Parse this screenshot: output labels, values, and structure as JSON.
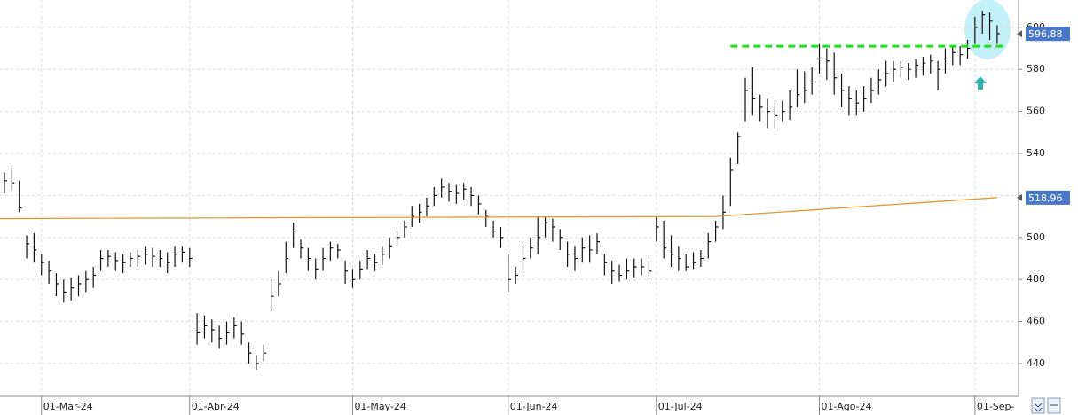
{
  "chart_data": {
    "type": "ohlc",
    "categories": [
      null,
      null,
      null,
      null,
      null,
      "01-Mar-24",
      null,
      null,
      null,
      null,
      null,
      null,
      null,
      null,
      null,
      null,
      null,
      null,
      null,
      null,
      null,
      null,
      null,
      null,
      null,
      "01-Abr-24",
      null,
      null,
      null,
      null,
      null,
      null,
      null,
      null,
      null,
      null,
      null,
      null,
      null,
      null,
      null,
      null,
      null,
      null,
      null,
      null,
      null,
      "01-May-24",
      null,
      null,
      null,
      null,
      null,
      null,
      null,
      null,
      null,
      null,
      null,
      null,
      null,
      null,
      null,
      null,
      null,
      null,
      null,
      null,
      "01-Jun-24",
      null,
      null,
      null,
      null,
      null,
      null,
      null,
      null,
      null,
      null,
      null,
      null,
      null,
      null,
      null,
      null,
      null,
      null,
      null,
      "01-Jul-24",
      null,
      null,
      null,
      null,
      null,
      null,
      null,
      null,
      null,
      null,
      null,
      null,
      null,
      null,
      null,
      null,
      null,
      null,
      null,
      null,
      null,
      "01-Ago-24",
      null,
      null,
      null,
      null,
      null,
      null,
      null,
      null,
      null,
      null,
      null,
      null,
      null,
      null,
      null,
      null,
      null,
      null,
      null,
      null,
      "01-Sep-",
      null,
      null,
      null
    ],
    "high": [
      531,
      533,
      527,
      501,
      502,
      492,
      489,
      483,
      480,
      481,
      482,
      484,
      486,
      494,
      494,
      493,
      492,
      493,
      494,
      496,
      495,
      494,
      493,
      496,
      496,
      495,
      464,
      463,
      461,
      458,
      460,
      462,
      460,
      450,
      444,
      449,
      480,
      484,
      498,
      507,
      499,
      495,
      490,
      495,
      498,
      497,
      489,
      485,
      489,
      494,
      492,
      496,
      500,
      503,
      508,
      515,
      516,
      519,
      524,
      528,
      526,
      525,
      526,
      524,
      520,
      513,
      508,
      505,
      492,
      486,
      497,
      500,
      510,
      510,
      509,
      504,
      498,
      496,
      500,
      501,
      502,
      492,
      489,
      487,
      490,
      490,
      490,
      489,
      510,
      508,
      501,
      496,
      492,
      493,
      494,
      502,
      508,
      520,
      538,
      550,
      576,
      581,
      568,
      566,
      564,
      565,
      570,
      580,
      579,
      581,
      592,
      590,
      588,
      578,
      572,
      570,
      572,
      576,
      580,
      584,
      584,
      584,
      583,
      585,
      586,
      587,
      584,
      590,
      591,
      591,
      594,
      605,
      608,
      607,
      601
    ],
    "low": [
      521,
      522,
      512,
      490,
      488,
      482,
      478,
      472,
      469,
      470,
      472,
      474,
      476,
      484,
      486,
      484,
      483,
      486,
      486,
      487,
      486,
      486,
      483,
      486,
      488,
      486,
      449,
      452,
      450,
      447,
      449,
      452,
      449,
      440,
      437,
      441,
      465,
      472,
      483,
      495,
      490,
      484,
      480,
      484,
      489,
      490,
      478,
      476,
      480,
      485,
      484,
      487,
      490,
      496,
      500,
      505,
      507,
      510,
      515,
      519,
      517,
      516,
      518,
      515,
      511,
      505,
      500,
      495,
      474,
      478,
      483,
      490,
      492,
      500,
      498,
      494,
      486,
      484,
      488,
      488,
      492,
      482,
      478,
      479,
      480,
      481,
      482,
      480,
      498,
      490,
      486,
      484,
      484,
      485,
      486,
      490,
      498,
      504,
      515,
      535,
      555,
      558,
      555,
      552,
      552,
      555,
      556,
      562,
      564,
      568,
      578,
      575,
      568,
      562,
      558,
      558,
      560,
      564,
      568,
      572,
      574,
      576,
      575,
      576,
      577,
      578,
      570,
      578,
      582,
      582,
      585,
      592,
      597,
      594,
      592
    ],
    "close": [
      527,
      526,
      514,
      497,
      494,
      488,
      484,
      478,
      474,
      476,
      478,
      480,
      482,
      490,
      491,
      489,
      488,
      490,
      491,
      492,
      491,
      490,
      488,
      492,
      493,
      490,
      455,
      458,
      456,
      452,
      455,
      458,
      454,
      445,
      440,
      445,
      472,
      478,
      490,
      503,
      495,
      490,
      485,
      490,
      495,
      494,
      484,
      480,
      485,
      490,
      488,
      492,
      496,
      500,
      505,
      510,
      512,
      515,
      520,
      524,
      522,
      521,
      523,
      520,
      516,
      510,
      503,
      500,
      480,
      482,
      490,
      495,
      500,
      507,
      505,
      500,
      492,
      490,
      495,
      494,
      498,
      488,
      484,
      482,
      484,
      486,
      486,
      484,
      505,
      495,
      492,
      490,
      486,
      488,
      490,
      498,
      505,
      512,
      532,
      548,
      570,
      566,
      562,
      560,
      558,
      560,
      562,
      568,
      570,
      574,
      585,
      584,
      576,
      570,
      566,
      564,
      566,
      570,
      575,
      578,
      580,
      581,
      580,
      582,
      583,
      584,
      580,
      585,
      588,
      587,
      590,
      600,
      606,
      603,
      597
    ],
    "color": "#111111",
    "moving_average": {
      "x": [
        -1,
        96,
        134
      ],
      "values": [
        509,
        510,
        519
      ],
      "color": "#e8962e"
    },
    "resistance": {
      "value": 591,
      "color": "#22dd22"
    },
    "price_tags": [
      {
        "value": 596.88,
        "label": "596,88"
      },
      {
        "value": 518.96,
        "label": "518,96"
      }
    ],
    "price_tag_color": "#4a78c8",
    "ylim": [
      424.4,
      613
    ],
    "yticks": [
      440,
      460,
      480,
      500,
      520,
      540,
      560,
      580,
      600
    ],
    "grid": true
  }
}
